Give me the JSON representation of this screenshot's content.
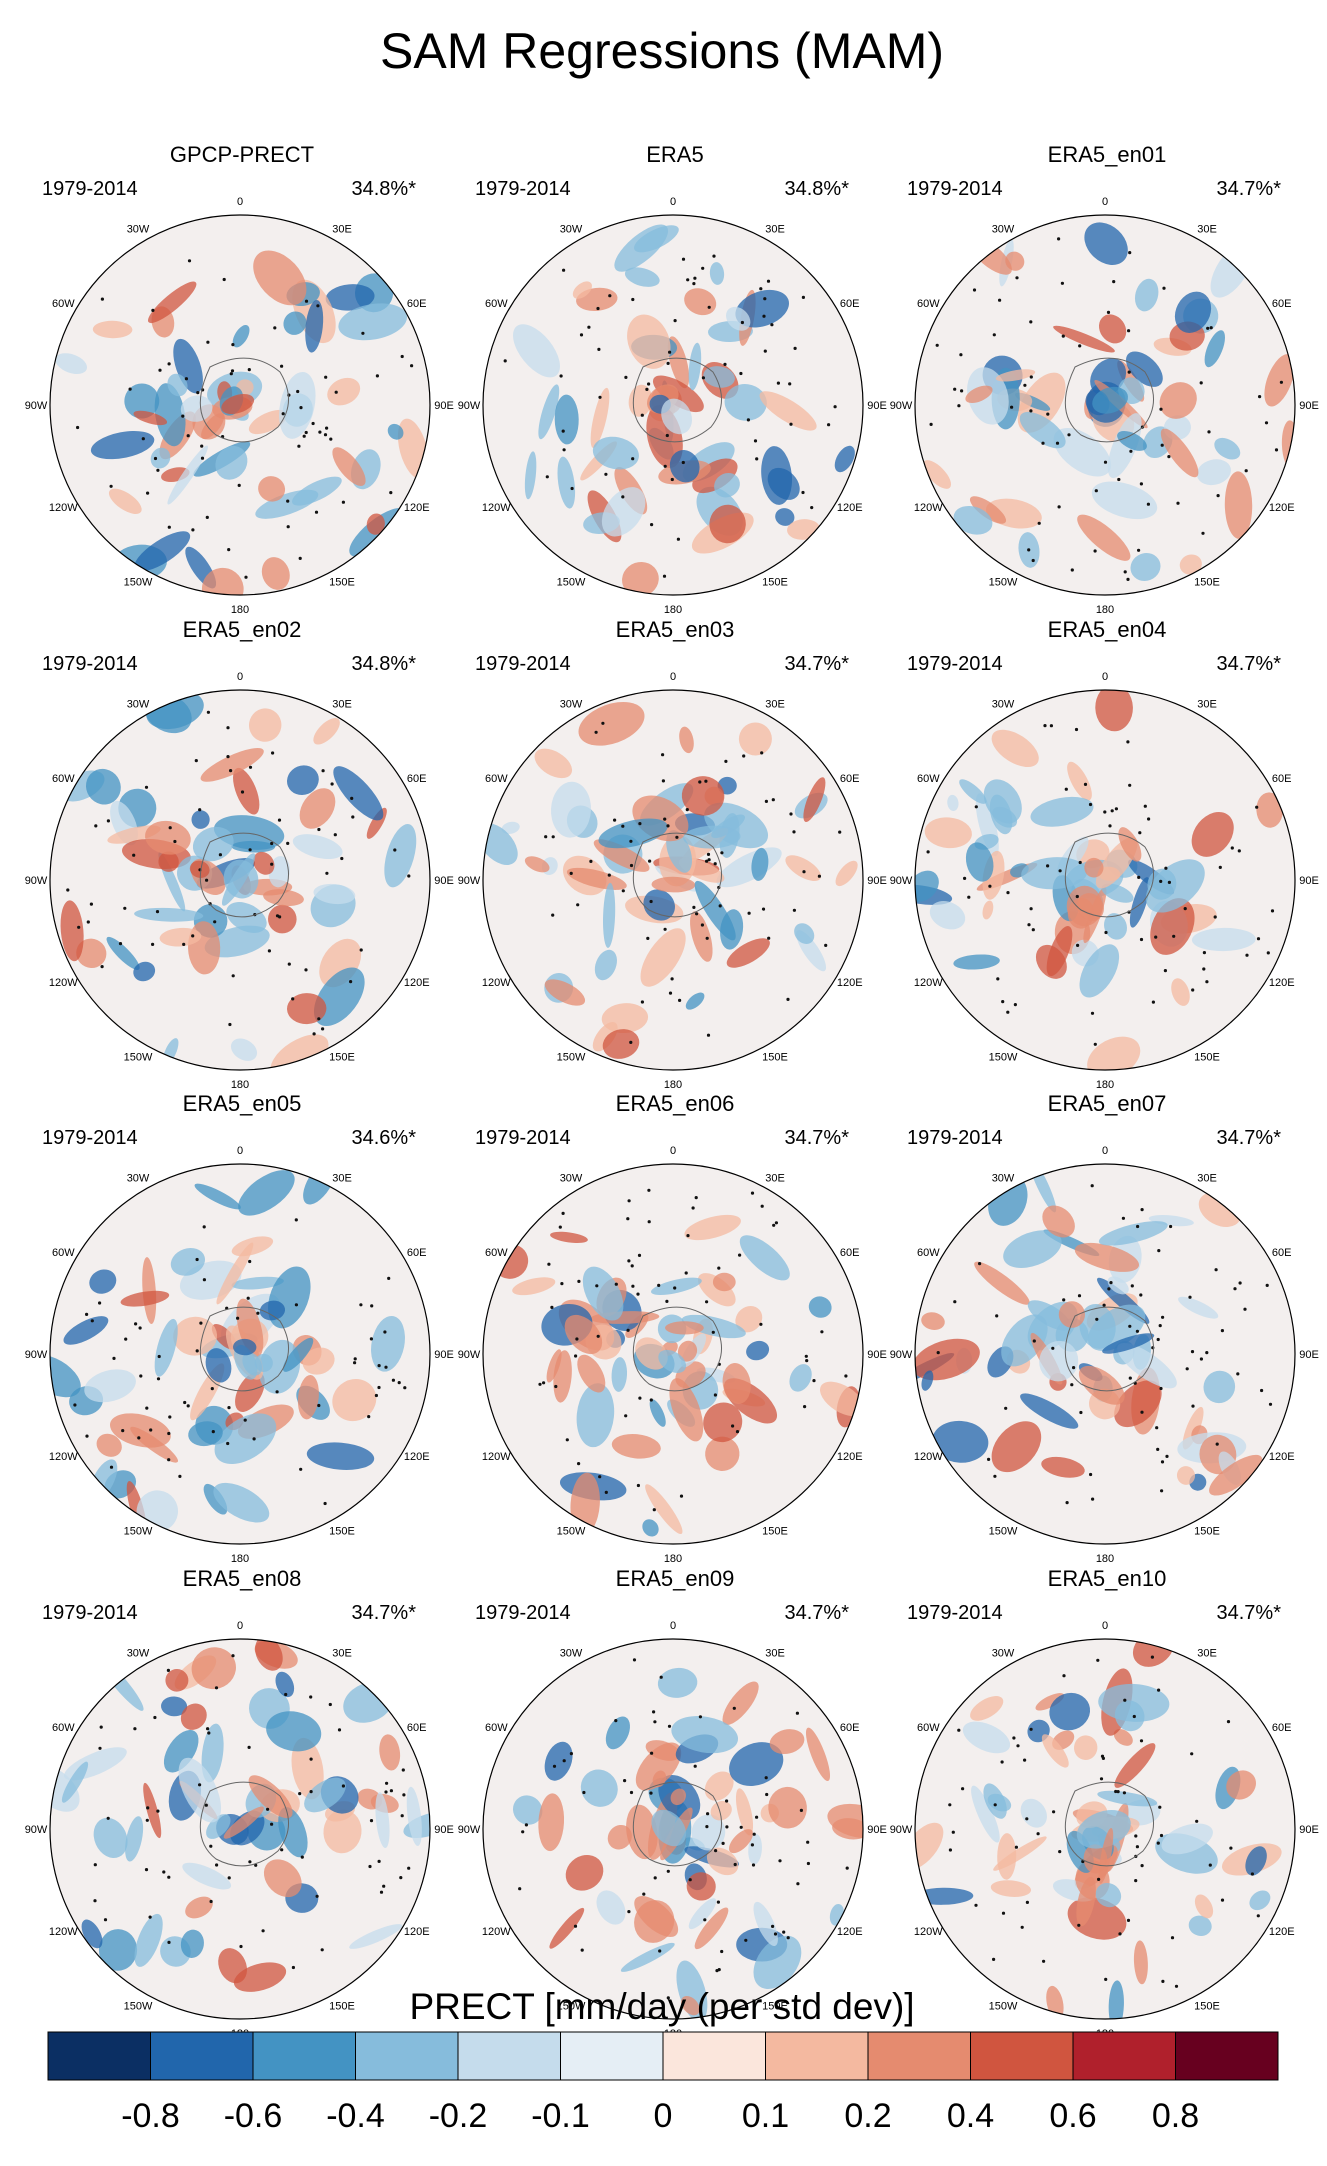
{
  "title": "SAM Regressions (MAM)",
  "panels": [
    {
      "name": "GPCP-PRECT",
      "period": "1979-2014",
      "variance": "34.8%*"
    },
    {
      "name": "ERA5",
      "period": "1979-2014",
      "variance": "34.8%*"
    },
    {
      "name": "ERA5_en01",
      "period": "1979-2014",
      "variance": "34.7%*"
    },
    {
      "name": "ERA5_en02",
      "period": "1979-2014",
      "variance": "34.8%*"
    },
    {
      "name": "ERA5_en03",
      "period": "1979-2014",
      "variance": "34.7%*"
    },
    {
      "name": "ERA5_en04",
      "period": "1979-2014",
      "variance": "34.7%*"
    },
    {
      "name": "ERA5_en05",
      "period": "1979-2014",
      "variance": "34.6%*"
    },
    {
      "name": "ERA5_en06",
      "period": "1979-2014",
      "variance": "34.7%*"
    },
    {
      "name": "ERA5_en07",
      "period": "1979-2014",
      "variance": "34.7%*"
    },
    {
      "name": "ERA5_en08",
      "period": "1979-2014",
      "variance": "34.7%*"
    },
    {
      "name": "ERA5_en09",
      "period": "1979-2014",
      "variance": "34.7%*"
    },
    {
      "name": "ERA5_en10",
      "period": "1979-2014",
      "variance": "34.7%*"
    }
  ],
  "longitude_labels": [
    "0",
    "30E",
    "60E",
    "90E",
    "120E",
    "150E",
    "180",
    "150W",
    "120W",
    "90W",
    "60W",
    "30W"
  ],
  "colorbar": {
    "label": "PRECT [mm/day (per std dev)]",
    "ticks": [
      "-0.8",
      "-0.6",
      "-0.4",
      "-0.2",
      "-0.1",
      "0",
      "0.1",
      "0.2",
      "0.4",
      "0.6",
      "0.8"
    ],
    "colors": [
      "#0b2f63",
      "#2166ac",
      "#4393c3",
      "#86bcdc",
      "#c5dcec",
      "#e5eef5",
      "#fbe6dc",
      "#f4b9a0",
      "#e58b6f",
      "#d0553f",
      "#b0202c",
      "#67001f"
    ]
  },
  "chart_data": {
    "type": "heatmap",
    "title": "SAM Regressions (MAM)",
    "projection": "south-polar-stereographic",
    "variable": "PRECT",
    "units": "mm/day (per std dev)",
    "levels": [
      -0.8,
      -0.6,
      -0.4,
      -0.2,
      -0.1,
      0,
      0.1,
      0.2,
      0.4,
      0.6,
      0.8
    ],
    "series": [
      {
        "name": "GPCP-PRECT",
        "period": "1979-2014",
        "explained_variance_pct": 34.8
      },
      {
        "name": "ERA5",
        "period": "1979-2014",
        "explained_variance_pct": 34.8
      },
      {
        "name": "ERA5_en01",
        "period": "1979-2014",
        "explained_variance_pct": 34.7
      },
      {
        "name": "ERA5_en02",
        "period": "1979-2014",
        "explained_variance_pct": 34.8
      },
      {
        "name": "ERA5_en03",
        "period": "1979-2014",
        "explained_variance_pct": 34.7
      },
      {
        "name": "ERA5_en04",
        "period": "1979-2014",
        "explained_variance_pct": 34.7
      },
      {
        "name": "ERA5_en05",
        "period": "1979-2014",
        "explained_variance_pct": 34.6
      },
      {
        "name": "ERA5_en06",
        "period": "1979-2014",
        "explained_variance_pct": 34.7
      },
      {
        "name": "ERA5_en07",
        "period": "1979-2014",
        "explained_variance_pct": 34.7
      },
      {
        "name": "ERA5_en08",
        "period": "1979-2014",
        "explained_variance_pct": 34.7
      },
      {
        "name": "ERA5_en09",
        "period": "1979-2014",
        "explained_variance_pct": 34.7
      },
      {
        "name": "ERA5_en10",
        "period": "1979-2014",
        "explained_variance_pct": 34.7
      }
    ]
  }
}
